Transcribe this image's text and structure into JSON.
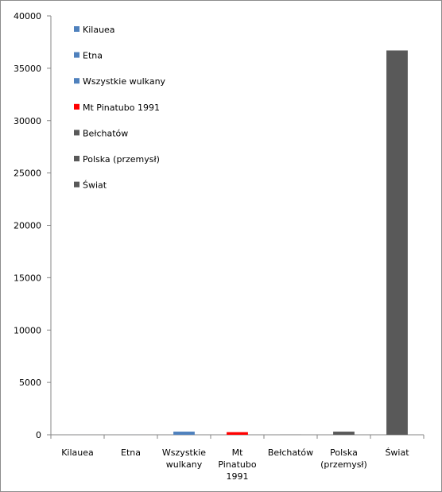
{
  "chart_data": {
    "type": "bar",
    "title": "",
    "xlabel": "",
    "ylabel": "",
    "ylim": [
      0,
      40000
    ],
    "yticks": [
      0,
      5000,
      10000,
      15000,
      20000,
      25000,
      30000,
      35000,
      40000
    ],
    "grid": false,
    "legend_position": "top-left",
    "categories": [
      "Kilauea",
      "Etna",
      "Wszystkie wulkany",
      "Mt Pinatubo 1991",
      "Bełchatów",
      "Polska (przemysł)",
      "Świat"
    ],
    "category_label_lines": [
      [
        "Kilauea"
      ],
      [
        "Etna"
      ],
      [
        "Wszystkie",
        "wulkany"
      ],
      [
        "Mt",
        "Pinatubo",
        "1991"
      ],
      [
        "Bełchatów"
      ],
      [
        "Polska",
        "(przemysł)"
      ],
      [
        "Świat"
      ]
    ],
    "values": [
      1,
      2,
      300,
      250,
      12,
      300,
      36700
    ],
    "colors": [
      "#4f81bd",
      "#4f81bd",
      "#4f81bd",
      "#ff0000",
      "#595959",
      "#595959",
      "#595959"
    ],
    "legend": [
      {
        "label": "Kilauea",
        "color": "#4f81bd"
      },
      {
        "label": "Etna",
        "color": "#4f81bd"
      },
      {
        "label": "Wszystkie wulkany",
        "color": "#4f81bd"
      },
      {
        "label": "Mt Pinatubo 1991",
        "color": "#ff0000"
      },
      {
        "label": "Bełchatów",
        "color": "#595959"
      },
      {
        "label": "Polska (przemysł)",
        "color": "#595959"
      },
      {
        "label": "Świat",
        "color": "#595959"
      }
    ]
  }
}
